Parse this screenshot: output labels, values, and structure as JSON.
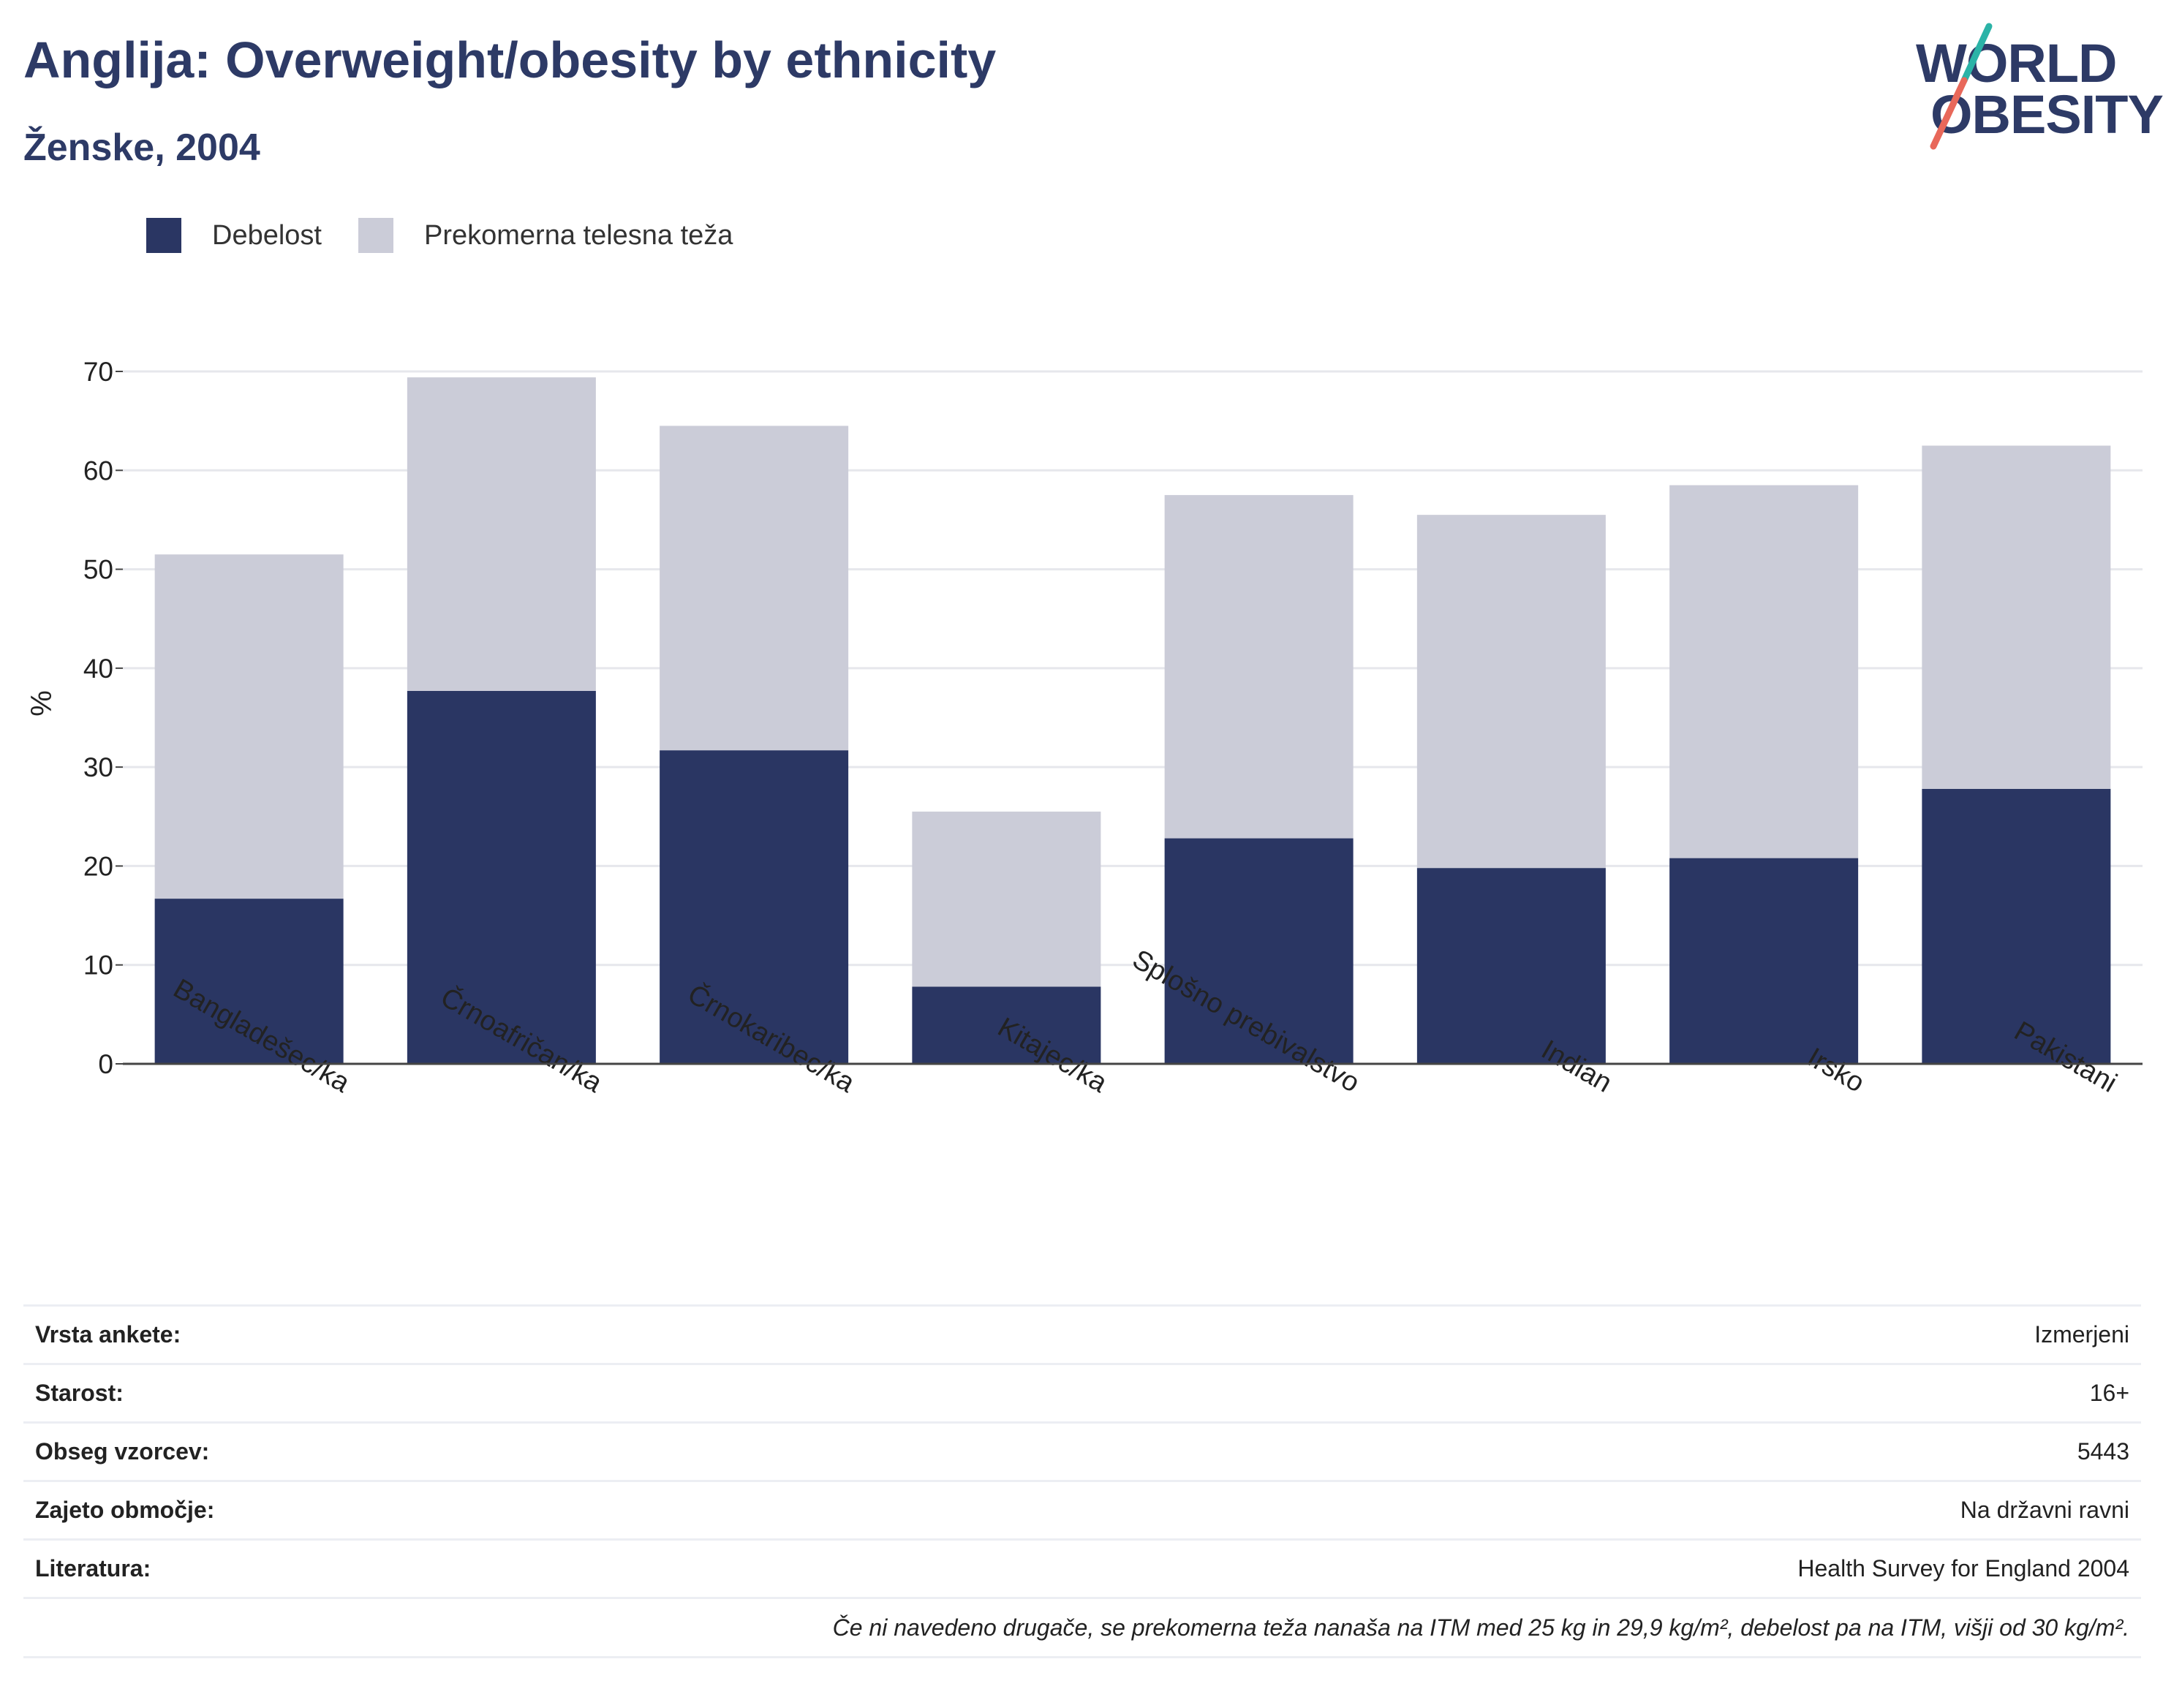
{
  "header": {
    "title": "Anglija: Overweight/obesity by ethnicity",
    "subtitle": "Ženske, 2004"
  },
  "logo": {
    "line1": "WORLD",
    "line2": "OBESITY",
    "colors": {
      "text": "#2d3a66",
      "slash_top": "#2bb3a7",
      "slash_bottom": "#e8685a"
    }
  },
  "legend": [
    {
      "label": "Debelost",
      "color": "#2a3663"
    },
    {
      "label": "Prekomerna telesna teža",
      "color": "#cbccd8"
    }
  ],
  "chart_data": {
    "type": "bar",
    "stacked": true,
    "title": "Anglija: Overweight/obesity by ethnicity",
    "subtitle": "Ženske, 2004",
    "xlabel": "",
    "ylabel": "%",
    "ylim": [
      0,
      70
    ],
    "yticks": [
      0,
      10,
      20,
      30,
      40,
      50,
      60,
      70
    ],
    "grid": true,
    "legend_position": "top-left",
    "categories": [
      "Bangladešec/ka",
      "Črnoafričan/ka",
      "Črnokaribec/ka",
      "Kitajec/ka",
      "Splošno prebivalstvo",
      "Indian",
      "Irsko",
      "Pakistani"
    ],
    "series": [
      {
        "name": "Debelost",
        "color": "#2a3663",
        "values": [
          16.7,
          37.7,
          31.7,
          7.8,
          22.8,
          19.8,
          20.8,
          27.8
        ]
      },
      {
        "name": "Prekomerna telesna teža",
        "color": "#cbccd8",
        "values": [
          34.8,
          31.7,
          32.8,
          17.7,
          34.7,
          35.7,
          37.7,
          34.7
        ]
      }
    ]
  },
  "info": {
    "rows": [
      {
        "label": "Vrsta ankete:",
        "value": "Izmerjeni"
      },
      {
        "label": "Starost:",
        "value": "16+"
      },
      {
        "label": "Obseg vzorcev:",
        "value": "5443"
      },
      {
        "label": "Zajeto območje:",
        "value": "Na državni ravni"
      },
      {
        "label": "Literatura:",
        "value": "Health Survey for England 2004"
      }
    ],
    "note": "Če ni navedeno drugače, se prekomerna teža nanaša na ITM med 25 kg in 29,9 kg/m², debelost pa na ITM, višji od 30 kg/m²."
  }
}
